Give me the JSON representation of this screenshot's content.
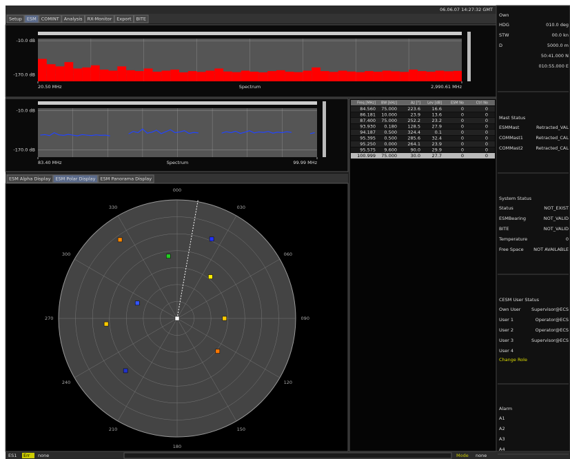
{
  "header": {
    "datetime": "06.06.07 14:27:32 GMT"
  },
  "tabs": {
    "items": [
      "Setup",
      "ESM",
      "COMINT",
      "Analysis",
      "RX-Monitor",
      "Export",
      "BITE"
    ],
    "selected": 1
  },
  "spectrum_top": {
    "type": "bar",
    "title": "Spectrum",
    "color": "#ff0000",
    "ylim": [
      -200,
      0
    ],
    "yticks": [
      {
        "value": -10,
        "label": "-10.0 dB"
      },
      {
        "value": -170,
        "label": "-170.0 dB"
      }
    ],
    "xlim": [
      20.5,
      2990.61
    ],
    "xticks": [
      {
        "value": 20.5,
        "label": "20.50 MHz"
      },
      {
        "value": 2990.61,
        "label": "2,990.61 MHz"
      }
    ],
    "values": [
      -95,
      -120,
      -130,
      -110,
      -140,
      -135,
      -125,
      -145,
      -150,
      -130,
      -148,
      -152,
      -140,
      -155,
      -150,
      -145,
      -158,
      -152,
      -156,
      -150,
      -140,
      -154,
      -157,
      -150,
      -155,
      -158,
      -152,
      -148,
      -155,
      -157,
      -150,
      -135,
      -152,
      -156,
      -150,
      -154,
      -157,
      -152,
      -155,
      -150,
      -153,
      -156,
      -145,
      -152,
      -155,
      -150,
      -153,
      -151
    ]
  },
  "spectrum_bottom": {
    "type": "line",
    "title": "Spectrum",
    "color": "#2244ff",
    "ylim": [
      -200,
      0
    ],
    "yticks": [
      {
        "value": -10,
        "label": "-10.0 dB"
      },
      {
        "value": -170,
        "label": "-170.0 dB"
      }
    ],
    "xlim": [
      83.4,
      99.99
    ],
    "xticks": [
      {
        "value": 83.4,
        "label": "83.40 MHz"
      },
      {
        "value": 99.99,
        "label": "99.99 MHz"
      }
    ],
    "values": [
      -110,
      -108,
      -112,
      -100,
      -109,
      -111,
      -107,
      -110,
      -113,
      -108,
      -110,
      -112,
      -109,
      -111,
      -110,
      -113,
      null,
      null,
      null,
      -105,
      -95,
      -100,
      -85,
      -102,
      -98,
      -90,
      -104,
      -96,
      -88,
      -100,
      -97,
      -92,
      -103,
      -99,
      -101,
      null,
      null,
      null,
      null,
      -102,
      -96,
      -100,
      -94,
      -103,
      -98,
      -92,
      -101,
      -97,
      -99,
      -95,
      -102,
      -98,
      -100,
      -96,
      -99,
      null,
      null,
      null,
      -104,
      -100
    ]
  },
  "table": {
    "columns": [
      "Freq [MHz]",
      "BW [kHz]",
      "Az [°]",
      "Lev [dB]",
      "ESM No",
      "Ctrl No"
    ],
    "rows": [
      [
        "84.560",
        "75.000",
        "223.6",
        "16.6",
        "0",
        "0"
      ],
      [
        "86.181",
        "10.000",
        "23.9",
        "13.6",
        "0",
        "0"
      ],
      [
        "87.400",
        "75.000",
        "252.2",
        "23.2",
        "0",
        "0"
      ],
      [
        "93.930",
        "0.180",
        "128.5",
        "27.9",
        "0",
        "0"
      ],
      [
        "94.187",
        "0.500",
        "324.4",
        "0.1",
        "0",
        "0"
      ],
      [
        "95.395",
        "0.500",
        "285.6",
        "32.4",
        "0",
        "0"
      ],
      [
        "95.250",
        "0.000",
        "264.1",
        "23.9",
        "0",
        "0"
      ],
      [
        "95.575",
        "9.600",
        "90.0",
        "29.9",
        "0",
        "0"
      ],
      [
        "100.999",
        "75.000",
        "30.0",
        "27.7",
        "0",
        "0"
      ]
    ],
    "selected": 8
  },
  "display_tabs": {
    "items": [
      "ESM Alpha Display",
      "ESM Polar Display",
      "ESM Panorama Display"
    ],
    "selected": 1
  },
  "polar": {
    "type": "polar",
    "ticks": [
      {
        "value": 0,
        "label": "000"
      },
      {
        "value": 30,
        "label": "030"
      },
      {
        "value": 60,
        "label": "060"
      },
      {
        "value": 90,
        "label": "090"
      },
      {
        "value": 120,
        "label": "120"
      },
      {
        "value": 150,
        "label": "150"
      },
      {
        "value": 180,
        "label": "180"
      },
      {
        "value": 210,
        "label": "210"
      },
      {
        "value": 240,
        "label": "240"
      },
      {
        "value": 270,
        "label": "270"
      },
      {
        "value": 300,
        "label": "300"
      },
      {
        "value": 330,
        "label": "330"
      }
    ],
    "bearing": 10,
    "contacts": [
      {
        "az": 324,
        "r": 0.82,
        "color": "#ff8800"
      },
      {
        "az": 23.5,
        "r": 0.73,
        "color": "#2233ff"
      },
      {
        "az": 352,
        "r": 0.53,
        "color": "#22cc22"
      },
      {
        "az": 38.7,
        "r": 0.45,
        "color": "#ffee00"
      },
      {
        "az": 291,
        "r": 0.36,
        "color": "#3355ff"
      },
      {
        "az": 265.5,
        "r": 0.6,
        "color": "#ffcc00"
      },
      {
        "az": 90,
        "r": 0.4,
        "color": "#ffcc00"
      },
      {
        "az": 129,
        "r": 0.44,
        "color": "#ff7700"
      },
      {
        "az": 224.6,
        "r": 0.62,
        "color": "#2233cc"
      },
      {
        "az": 0,
        "r": 0,
        "color": "#ffffff"
      }
    ]
  },
  "right_panel": {
    "sections": [
      {
        "title": "Own",
        "rows": [
          {
            "label": "HDG",
            "value": "010.0 deg"
          },
          {
            "label": "STW",
            "value": "00.0 kn"
          },
          {
            "label": "D",
            "value": "5000.0 m"
          },
          {
            "value": "50:41.000 N"
          },
          {
            "value": "010:55.000 E"
          }
        ]
      },
      {
        "title": "Mast Status",
        "rows": [
          {
            "label": "ESMMast",
            "value": "Retracted_VAL"
          },
          {
            "label": "COMMast1",
            "value": "Retracted_CAL"
          },
          {
            "label": "COMMast2",
            "value": "Retracted_CAL"
          }
        ]
      },
      {
        "title": "System Status",
        "rows": [
          {
            "label": "Status",
            "value": "NOT_EXIST"
          },
          {
            "label": "ESMBearing",
            "value": "NOT_VALID"
          },
          {
            "label": "BITE",
            "value": "NOT_VALID"
          },
          {
            "label": "Temperature",
            "value": "0"
          },
          {
            "label": "Free Space",
            "value": "NOT AVAILABLE"
          }
        ]
      },
      {
        "title": "CESM User Status",
        "rows": [
          {
            "label": "Own User",
            "value": "Supervisor@ECS"
          },
          {
            "label": "User 1",
            "value": "Operator@ECS"
          },
          {
            "label": "User 2",
            "value": "Operator@ECS"
          },
          {
            "label": "User 3",
            "value": "Supervisor@ECS"
          },
          {
            "label": "User 4"
          }
        ],
        "action": "Change Role"
      },
      {
        "title": "Alarm",
        "rows": [
          {
            "label": "A1"
          },
          {
            "label": "A2"
          },
          {
            "label": "A3"
          },
          {
            "label": "A4"
          }
        ]
      }
    ]
  },
  "status_bar": {
    "left": "ES1",
    "error_label": "Err",
    "error": "none",
    "mode_label": "Mode",
    "mode": "none"
  }
}
